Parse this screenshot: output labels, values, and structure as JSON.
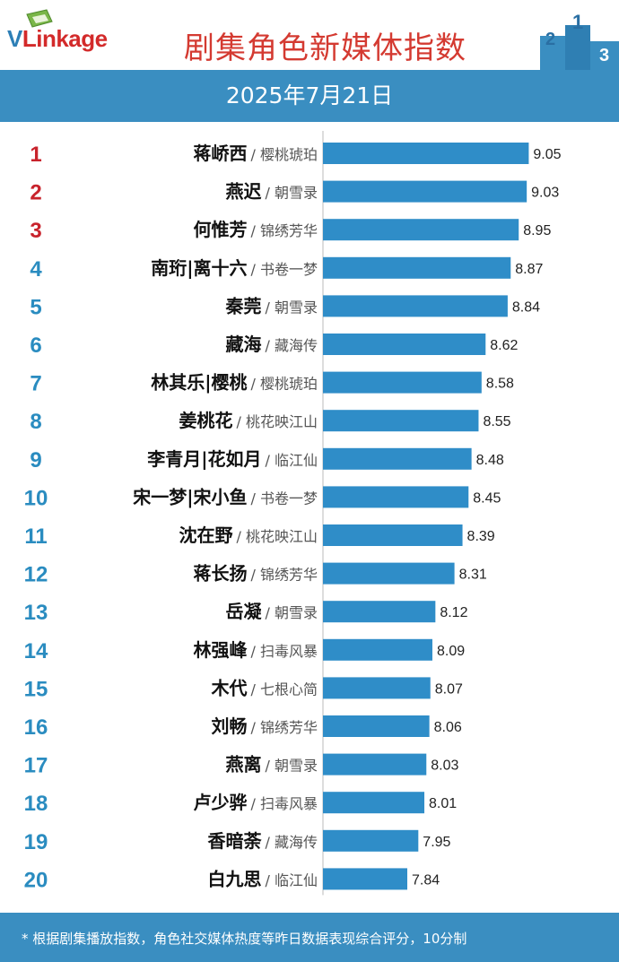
{
  "header": {
    "logo_text_v": "V",
    "logo_text_rest": "Linkage",
    "title": "剧集角色新媒体指数",
    "podium_labels": [
      "2",
      "1",
      "3"
    ]
  },
  "date": "2025年7月21日",
  "footer": {
    "note": "* 根据剧集播放指数，角色社交媒体热度等昨日数据表现综合评分，10分制"
  },
  "colors": {
    "bar": "#2f8dc8",
    "rank_top": "#c8232c",
    "rank_other": "#2a8cc0",
    "band": "#3a8ec1",
    "title": "#d43a31"
  },
  "chart_data": {
    "type": "bar",
    "orientation": "horizontal",
    "title": "剧集角色新媒体指数",
    "xlim": [
      7.0,
      9.1
    ],
    "grid": false,
    "items": [
      {
        "rank": "1",
        "character": "蒋峤西",
        "show": "樱桃琥珀",
        "value": 9.05
      },
      {
        "rank": "2",
        "character": "燕迟",
        "show": "朝雪录",
        "value": 9.03
      },
      {
        "rank": "3",
        "character": "何惟芳",
        "show": "锦绣芳华",
        "value": 8.95
      },
      {
        "rank": "4",
        "character": "南珩|离十六",
        "show": "书卷一梦",
        "value": 8.87
      },
      {
        "rank": "5",
        "character": "秦莞",
        "show": "朝雪录",
        "value": 8.84
      },
      {
        "rank": "6",
        "character": "藏海",
        "show": "藏海传",
        "value": 8.62
      },
      {
        "rank": "7",
        "character": "林其乐|樱桃",
        "show": "樱桃琥珀",
        "value": 8.58
      },
      {
        "rank": "8",
        "character": "姜桃花",
        "show": "桃花映江山",
        "value": 8.55
      },
      {
        "rank": "9",
        "character": "李青月|花如月",
        "show": "临江仙",
        "value": 8.48
      },
      {
        "rank": "10",
        "character": "宋一梦|宋小鱼",
        "show": "书卷一梦",
        "value": 8.45
      },
      {
        "rank": "11",
        "character": "沈在野",
        "show": "桃花映江山",
        "value": 8.39
      },
      {
        "rank": "12",
        "character": "蒋长扬",
        "show": "锦绣芳华",
        "value": 8.31
      },
      {
        "rank": "13",
        "character": "岳凝",
        "show": "朝雪录",
        "value": 8.12
      },
      {
        "rank": "14",
        "character": "林强峰",
        "show": "扫毒风暴",
        "value": 8.09
      },
      {
        "rank": "15",
        "character": "木代",
        "show": "七根心简",
        "value": 8.07
      },
      {
        "rank": "16",
        "character": "刘畅",
        "show": "锦绣芳华",
        "value": 8.06
      },
      {
        "rank": "17",
        "character": "燕离",
        "show": "朝雪录",
        "value": 8.03
      },
      {
        "rank": "18",
        "character": "卢少骅",
        "show": "扫毒风暴",
        "value": 8.01
      },
      {
        "rank": "19",
        "character": "香暗荼",
        "show": "藏海传",
        "value": 7.95
      },
      {
        "rank": "20",
        "character": "白九思",
        "show": "临江仙",
        "value": 7.84
      }
    ]
  }
}
